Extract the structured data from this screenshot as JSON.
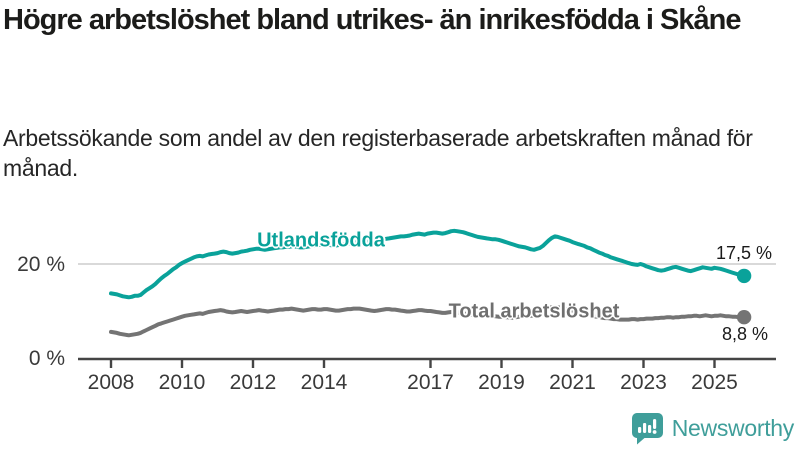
{
  "title": "Högre arbetslöshet bland utrikes- än inrikesfödda i Skåne",
  "subtitle": "Arbetssökande som andel av den registerbaserade arbetskraften månad för månad.",
  "footer": {
    "brand": "Newsworthy",
    "logo_icon": "bar-chart-speech-bubble-icon"
  },
  "colors": {
    "series_foreign": "#0aa29a",
    "series_total": "#747474",
    "gridline": "#d9d9d9",
    "axis": "#454545",
    "brand_teal": "#3f9e9a"
  },
  "chart_data": {
    "type": "line",
    "interval": "monthly",
    "start": "2008-01",
    "end": "2025-11",
    "ylim": [
      0,
      28
    ],
    "grid": "single horizontal gridline at 20 %",
    "legend_position": "inline labels on lines, end-value labels at right",
    "y_ticks": [
      {
        "value": 0,
        "label": "0 %"
      },
      {
        "value": 20,
        "label": "20 %"
      }
    ],
    "x_ticks": [
      {
        "year": 2008,
        "label": "2008"
      },
      {
        "year": 2010,
        "label": "2010"
      },
      {
        "year": 2012,
        "label": "2012"
      },
      {
        "year": 2014,
        "label": "2014"
      },
      {
        "year": 2017,
        "label": "2017"
      },
      {
        "year": 2019,
        "label": "2019"
      },
      {
        "year": 2021,
        "label": "2021"
      },
      {
        "year": 2023,
        "label": "2023"
      },
      {
        "year": 2025,
        "label": "2025"
      }
    ],
    "series": [
      {
        "name": "Utlandsfödda",
        "color": "#0aa29a",
        "end_label": "17,5 %",
        "last_value": 17.5,
        "values": [
          13.8,
          13.7,
          13.6,
          13.4,
          13.2,
          13.1,
          13.0,
          13.1,
          13.3,
          13.3,
          13.5,
          14.0,
          14.5,
          14.9,
          15.3,
          15.8,
          16.4,
          17.0,
          17.5,
          17.9,
          18.4,
          18.9,
          19.3,
          19.8,
          20.2,
          20.5,
          20.8,
          21.1,
          21.4,
          21.6,
          21.7,
          21.6,
          21.8,
          22.0,
          22.1,
          22.2,
          22.3,
          22.5,
          22.6,
          22.5,
          22.3,
          22.2,
          22.3,
          22.4,
          22.6,
          22.7,
          22.8,
          23.0,
          23.1,
          23.2,
          23.2,
          23.1,
          23.0,
          23.1,
          23.2,
          23.3,
          23.4,
          23.5,
          23.5,
          23.6,
          23.6,
          23.7,
          23.7,
          23.6,
          23.5,
          23.5,
          23.6,
          23.7,
          23.8,
          23.9,
          24.0,
          24.0,
          24.1,
          24.1,
          24.0,
          23.9,
          23.9,
          24.0,
          24.1,
          24.2,
          24.3,
          24.4,
          24.5,
          24.6,
          24.7,
          24.8,
          24.8,
          24.7,
          24.7,
          24.8,
          24.9,
          25.0,
          25.2,
          25.3,
          25.4,
          25.5,
          25.6,
          25.7,
          25.8,
          25.8,
          25.9,
          26.0,
          26.2,
          26.3,
          26.4,
          26.3,
          26.2,
          26.4,
          26.5,
          26.6,
          26.6,
          26.5,
          26.4,
          26.5,
          26.7,
          26.9,
          27.0,
          26.9,
          26.8,
          26.7,
          26.5,
          26.3,
          26.1,
          25.9,
          25.7,
          25.6,
          25.5,
          25.4,
          25.3,
          25.2,
          25.2,
          25.1,
          24.9,
          24.7,
          24.5,
          24.3,
          24.1,
          23.9,
          23.7,
          23.6,
          23.5,
          23.3,
          23.1,
          23.0,
          23.2,
          23.4,
          23.8,
          24.4,
          25.0,
          25.5,
          25.8,
          25.7,
          25.5,
          25.3,
          25.1,
          24.9,
          24.6,
          24.4,
          24.2,
          24.0,
          23.8,
          23.5,
          23.3,
          23.0,
          22.7,
          22.4,
          22.2,
          21.9,
          21.7,
          21.4,
          21.2,
          21.0,
          20.8,
          20.6,
          20.4,
          20.2,
          20.0,
          19.9,
          19.8,
          20.0,
          19.8,
          19.5,
          19.3,
          19.1,
          18.9,
          18.7,
          18.6,
          18.7,
          18.9,
          19.1,
          19.3,
          19.4,
          19.2,
          19.0,
          18.8,
          18.6,
          18.5,
          18.7,
          18.9,
          19.1,
          19.3,
          19.2,
          19.1,
          19.0,
          19.2,
          19.1,
          19.0,
          18.8,
          18.6,
          18.4,
          18.2,
          18.0,
          17.8,
          17.6,
          17.5
        ]
      },
      {
        "name": "Total arbetslöshet",
        "color": "#747474",
        "end_label": "8,8 %",
        "last_value": 8.8,
        "values": [
          5.7,
          5.6,
          5.5,
          5.3,
          5.2,
          5.1,
          5.0,
          5.1,
          5.2,
          5.3,
          5.5,
          5.8,
          6.1,
          6.4,
          6.7,
          7.0,
          7.3,
          7.5,
          7.7,
          7.9,
          8.1,
          8.3,
          8.5,
          8.7,
          8.9,
          9.1,
          9.2,
          9.3,
          9.4,
          9.5,
          9.6,
          9.5,
          9.7,
          9.9,
          10.0,
          10.1,
          10.2,
          10.3,
          10.2,
          10.0,
          9.9,
          9.8,
          9.9,
          10.0,
          10.1,
          10.0,
          9.9,
          10.0,
          10.1,
          10.2,
          10.3,
          10.2,
          10.1,
          10.0,
          10.1,
          10.2,
          10.3,
          10.4,
          10.4,
          10.5,
          10.5,
          10.6,
          10.5,
          10.4,
          10.3,
          10.2,
          10.3,
          10.4,
          10.5,
          10.5,
          10.4,
          10.4,
          10.5,
          10.5,
          10.4,
          10.3,
          10.2,
          10.2,
          10.3,
          10.4,
          10.5,
          10.5,
          10.6,
          10.6,
          10.6,
          10.5,
          10.4,
          10.3,
          10.2,
          10.1,
          10.2,
          10.3,
          10.4,
          10.5,
          10.5,
          10.4,
          10.4,
          10.3,
          10.2,
          10.1,
          10.0,
          10.0,
          10.1,
          10.2,
          10.3,
          10.3,
          10.2,
          10.1,
          10.1,
          10.0,
          9.9,
          9.8,
          9.7,
          9.7,
          9.8,
          9.9,
          9.9,
          9.8,
          9.7,
          9.6,
          9.5,
          9.4,
          9.3,
          9.2,
          9.1,
          9.1,
          9.2,
          9.2,
          9.1,
          9.0,
          9.0,
          8.9,
          8.9,
          8.8,
          8.8,
          8.7,
          8.7,
          8.8,
          8.9,
          9.0,
          9.0,
          9.1,
          9.1,
          9.2,
          9.4,
          9.6,
          10.0,
          10.4,
          10.7,
          10.9,
          11.0,
          10.9,
          10.8,
          10.6,
          10.5,
          10.3,
          10.2,
          10.0,
          9.9,
          9.7,
          9.5,
          9.3,
          9.2,
          9.0,
          8.9,
          8.8,
          8.7,
          8.6,
          8.6,
          8.5,
          8.4,
          8.4,
          8.3,
          8.3,
          8.3,
          8.3,
          8.4,
          8.4,
          8.3,
          8.4,
          8.4,
          8.5,
          8.5,
          8.5,
          8.6,
          8.6,
          8.7,
          8.7,
          8.8,
          8.8,
          8.7,
          8.8,
          8.8,
          8.9,
          8.9,
          9.0,
          9.0,
          9.1,
          9.1,
          9.0,
          9.1,
          9.2,
          9.1,
          9.0,
          9.1,
          9.1,
          9.2,
          9.1,
          9.0,
          9.0,
          8.9,
          8.9,
          8.8,
          8.8,
          8.8
        ]
      }
    ]
  }
}
